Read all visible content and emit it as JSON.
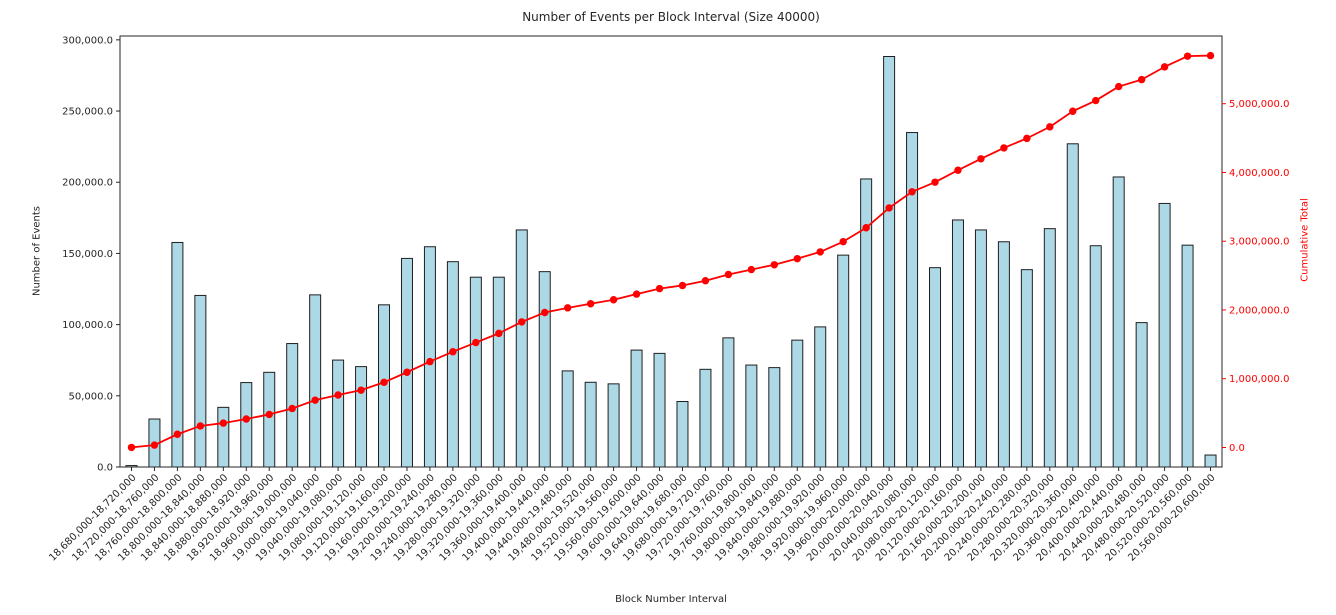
{
  "chart_data": {
    "type": "combo",
    "title": "Number of Events per Block Interval (Size 40000)",
    "xlabel": "Block Number Interval",
    "grid": false,
    "legend": "none",
    "categories": [
      "18,680,000-18,720,000",
      "18,720,000-18,760,000",
      "18,760,000-18,800,000",
      "18,800,000-18,840,000",
      "18,840,000-18,880,000",
      "18,880,000-18,920,000",
      "18,920,000-18,960,000",
      "18,960,000-19,000,000",
      "19,000,000-19,040,000",
      "19,040,000-19,080,000",
      "19,080,000-19,120,000",
      "19,120,000-19,160,000",
      "19,160,000-19,200,000",
      "19,200,000-19,240,000",
      "19,240,000-19,280,000",
      "19,280,000-19,320,000",
      "19,320,000-19,360,000",
      "19,360,000-19,400,000",
      "19,400,000-19,440,000",
      "19,440,000-19,480,000",
      "19,480,000-19,520,000",
      "19,520,000-19,560,000",
      "19,560,000-19,600,000",
      "19,600,000-19,640,000",
      "19,640,000-19,680,000",
      "19,680,000-19,720,000",
      "19,720,000-19,760,000",
      "19,760,000-19,800,000",
      "19,800,000-19,840,000",
      "19,840,000-19,880,000",
      "19,880,000-19,920,000",
      "19,920,000-19,960,000",
      "19,960,000-20,000,000",
      "20,000,000-20,040,000",
      "20,040,000-20,080,000",
      "20,080,000-20,120,000",
      "20,120,000-20,160,000",
      "20,160,000-20,200,000",
      "20,200,000-20,240,000",
      "20,240,000-20,280,000",
      "20,280,000-20,320,000",
      "20,320,000-20,360,000",
      "20,360,000-20,400,000",
      "20,400,000-20,440,000",
      "20,440,000-20,480,000",
      "20,480,000-20,520,000",
      "20,520,000-20,560,000",
      "20,560,000-20,600,000"
    ],
    "series": [
      {
        "name": "Number of Events",
        "type": "bar",
        "axis": "left",
        "values": [
          1000,
          33700,
          157700,
          120500,
          41900,
          59300,
          66500,
          86700,
          120900,
          75100,
          70500,
          113900,
          146500,
          154700,
          144200,
          133300,
          133300,
          166500,
          137200,
          67500,
          59500,
          58400,
          82100,
          79800,
          46000,
          68600,
          90700,
          71600,
          69800,
          89100,
          98400,
          148800,
          202300,
          288300,
          234900,
          140000,
          173500,
          166500,
          158200,
          138600,
          167400,
          227000,
          155400,
          203700,
          101400,
          185100,
          155800,
          8400
        ]
      },
      {
        "name": "Cumulative Total",
        "type": "line",
        "axis": "right",
        "values": [
          1000,
          34700,
          192400,
          312900,
          354800,
          414100,
          480600,
          567300,
          688200,
          763300,
          833800,
          947700,
          1094200,
          1248900,
          1393100,
          1526400,
          1659700,
          1826200,
          1963400,
          2030900,
          2090400,
          2148800,
          2230900,
          2310700,
          2356700,
          2425300,
          2516000,
          2587600,
          2657400,
          2746500,
          2844900,
          2993700,
          3196000,
          3484300,
          3719200,
          3859200,
          4032700,
          4199200,
          4357400,
          4496000,
          4663400,
          4890400,
          5045800,
          5249500,
          5350900,
          5536000,
          5691800,
          5700200
        ]
      }
    ],
    "left_axis": {
      "label": "Number of Events",
      "tick_labels": [
        "0.0",
        "50,000.0",
        "100,000.0",
        "150,000.0",
        "200,000.0",
        "250,000.0",
        "300,000.0"
      ],
      "tick_values": [
        0,
        50000,
        100000,
        150000,
        200000,
        250000,
        300000
      ],
      "lim": [
        0,
        302700
      ],
      "color": "#262626"
    },
    "right_axis": {
      "label": "Cumulative Total",
      "tick_labels": [
        "0.0",
        "1,000,000.0",
        "2,000,000.0",
        "3,000,000.0",
        "4,000,000.0",
        "5,000,000.0"
      ],
      "tick_values": [
        0,
        1000000,
        2000000,
        3000000,
        4000000,
        5000000
      ],
      "lim": [
        -284000,
        5985000
      ],
      "color": "#ff0000"
    },
    "colors": {
      "bar_fill": "#add8e6",
      "bar_edge": "#1f1f1f",
      "line": "#ff0000",
      "marker": "#ff0000",
      "spine": "#262626"
    }
  }
}
